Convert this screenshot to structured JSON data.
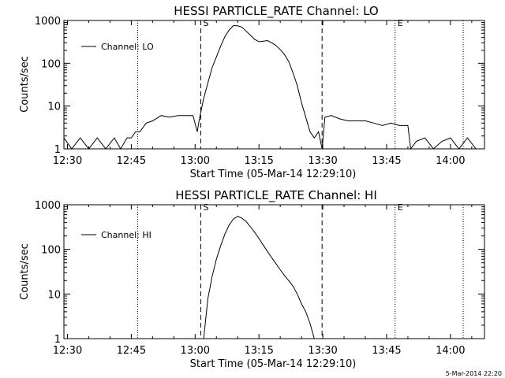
{
  "footer_timestamp": "5-Mar-2014 22:20",
  "chart_data": [
    {
      "type": "line",
      "title": "HESSI PARTICLE_RATE Channel: LO",
      "xlabel": "Start Time (05-Mar-14 12:29:10)",
      "ylabel": "Counts/sec",
      "yscale": "log",
      "xlim": [
        "12:29:10",
        "14:08:00"
      ],
      "ylim": [
        1,
        1000
      ],
      "xticks": [
        "12:30",
        "12:45",
        "13:00",
        "13:15",
        "13:30",
        "13:45",
        "14:00"
      ],
      "yticks": [
        "1",
        "10",
        "100",
        "1000"
      ],
      "legend": {
        "position": "top-left",
        "entries": [
          "Channel: LO"
        ]
      },
      "grid": false,
      "markers": [
        {
          "type": "dotted",
          "x": "12:46:30"
        },
        {
          "type": "dashed",
          "x": "13:01:20",
          "label": "S"
        },
        {
          "type": "dashed",
          "x": "13:29:50",
          "label": ""
        },
        {
          "type": "dotted",
          "x": "13:47:00",
          "label": "E"
        },
        {
          "type": "dotted",
          "x": "14:03:00"
        }
      ],
      "series": [
        {
          "name": "Channel: LO",
          "x": [
            "12:29:10",
            "12:31:00",
            "12:33:00",
            "12:35:00",
            "12:37:00",
            "12:39:00",
            "12:41:00",
            "12:42:30",
            "12:44:00",
            "12:45:00",
            "12:46:00",
            "12:47:00",
            "12:48:30",
            "12:50:00",
            "12:52:00",
            "12:54:00",
            "12:56:00",
            "12:58:00",
            "12:59:30",
            "13:00:30",
            "13:01:00",
            "13:02:00",
            "13:03:00",
            "13:04:00",
            "13:05:00",
            "13:06:00",
            "13:07:00",
            "13:08:00",
            "13:09:00",
            "13:10:00",
            "13:11:00",
            "13:12:00",
            "13:13:00",
            "13:14:00",
            "13:15:00",
            "13:16:00",
            "13:17:00",
            "13:18:00",
            "13:19:00",
            "13:20:00",
            "13:21:00",
            "13:22:00",
            "13:23:00",
            "13:24:00",
            "13:25:00",
            "13:26:00",
            "13:27:00",
            "13:28:00",
            "13:29:00",
            "13:29:50",
            "13:30:30",
            "13:32:00",
            "13:34:00",
            "13:36:00",
            "13:38:00",
            "13:40:00",
            "13:42:00",
            "13:44:00",
            "13:46:00",
            "13:48:00",
            "13:50:00",
            "13:50:40",
            "13:52:00",
            "13:54:00",
            "13:56:00",
            "13:58:00",
            "14:00:00",
            "14:02:00",
            "14:04:00",
            "14:06:00",
            "14:08:00"
          ],
          "y": [
            1.8,
            1.0,
            1.8,
            1.0,
            1.8,
            1.0,
            1.8,
            1.0,
            1.8,
            1.8,
            2.5,
            2.5,
            4.0,
            4.5,
            6.0,
            5.5,
            6.0,
            6.0,
            6.0,
            2.5,
            5.0,
            15,
            35,
            80,
            140,
            250,
            420,
            600,
            760,
            750,
            700,
            560,
            450,
            360,
            320,
            330,
            340,
            300,
            260,
            210,
            160,
            110,
            60,
            30,
            12,
            5.5,
            2.5,
            1.8,
            2.5,
            1.0,
            5.5,
            6.0,
            5.0,
            4.5,
            4.5,
            4.5,
            4.0,
            3.5,
            4.0,
            3.5,
            3.5,
            1.0,
            1.5,
            1.8,
            1.0,
            1.5,
            1.8,
            1.0,
            1.8,
            1.0,
            1.0
          ]
        }
      ]
    },
    {
      "type": "line",
      "title": "HESSI PARTICLE_RATE Channel: HI",
      "xlabel": "Start Time (05-Mar-14 12:29:10)",
      "ylabel": "Counts/sec",
      "yscale": "log",
      "xlim": [
        "12:29:10",
        "14:08:00"
      ],
      "ylim": [
        1,
        1000
      ],
      "xticks": [
        "12:30",
        "12:45",
        "13:00",
        "13:15",
        "13:30",
        "13:45",
        "14:00"
      ],
      "yticks": [
        "1",
        "10",
        "100",
        "1000"
      ],
      "legend": {
        "position": "top-left",
        "entries": [
          "Channel: HI"
        ]
      },
      "grid": false,
      "markers": [
        {
          "type": "dotted",
          "x": "12:46:30"
        },
        {
          "type": "dashed",
          "x": "13:01:20",
          "label": "S"
        },
        {
          "type": "dashed",
          "x": "13:29:50",
          "label": ""
        },
        {
          "type": "dotted",
          "x": "13:47:00",
          "label": "E"
        },
        {
          "type": "dotted",
          "x": "14:03:00"
        }
      ],
      "series": [
        {
          "name": "Channel: HI",
          "x": [
            "13:02:00",
            "13:03:00",
            "13:04:00",
            "13:05:00",
            "13:06:00",
            "13:07:00",
            "13:08:00",
            "13:09:00",
            "13:10:00",
            "13:11:00",
            "13:12:00",
            "13:13:00",
            "13:14:00",
            "13:15:00",
            "13:16:00",
            "13:17:00",
            "13:18:00",
            "13:19:00",
            "13:20:00",
            "13:21:00",
            "13:22:00",
            "13:23:00",
            "13:24:00",
            "13:25:00",
            "13:26:00",
            "13:27:00",
            "13:28:00"
          ],
          "y": [
            1.0,
            8,
            25,
            60,
            120,
            220,
            350,
            480,
            550,
            500,
            420,
            320,
            240,
            175,
            125,
            90,
            65,
            48,
            35,
            26,
            20,
            15,
            10,
            6,
            4,
            2.2,
            1.0
          ]
        }
      ]
    }
  ]
}
